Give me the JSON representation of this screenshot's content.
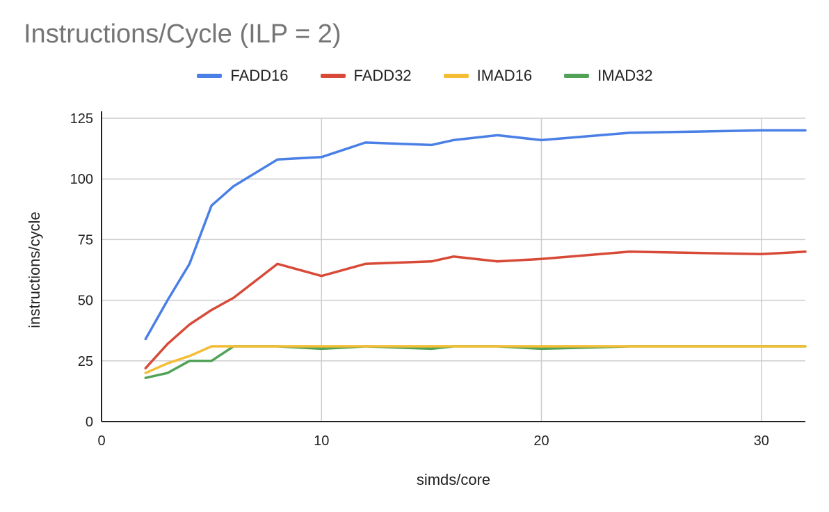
{
  "chart_data": {
    "type": "line",
    "title": "Instructions/Cycle (ILP = 2)",
    "xlabel": "simds/core",
    "ylabel": "instructions/cycle",
    "xlim": [
      0,
      32
    ],
    "ylim": [
      0,
      125
    ],
    "xticks": [
      0,
      10,
      20,
      30
    ],
    "yticks": [
      0,
      25,
      50,
      75,
      100,
      125
    ],
    "grid": true,
    "legend_position": "top",
    "x": [
      2,
      3,
      4,
      5,
      6,
      8,
      10,
      12,
      15,
      16,
      18,
      20,
      24,
      30,
      32
    ],
    "series": [
      {
        "name": "FADD16",
        "color": "#4a7fe5",
        "values": [
          34,
          50,
          65,
          89,
          97,
          108,
          109,
          115,
          114,
          116,
          118,
          116,
          119,
          120,
          120
        ]
      },
      {
        "name": "FADD32",
        "color": "#d84a38",
        "values": [
          22,
          32,
          40,
          46,
          51,
          65,
          60,
          65,
          66,
          68,
          66,
          67,
          70,
          69,
          70
        ]
      },
      {
        "name": "IMAD16",
        "color": "#f3bd35",
        "values": [
          20,
          24,
          27,
          31,
          31,
          31,
          31,
          31,
          31,
          31,
          31,
          31,
          31,
          31,
          31
        ]
      },
      {
        "name": "IMAD32",
        "color": "#51a257",
        "values": [
          18,
          20,
          25,
          25,
          31,
          31,
          30,
          31,
          30,
          31,
          31,
          30,
          31,
          31,
          31
        ]
      }
    ]
  }
}
